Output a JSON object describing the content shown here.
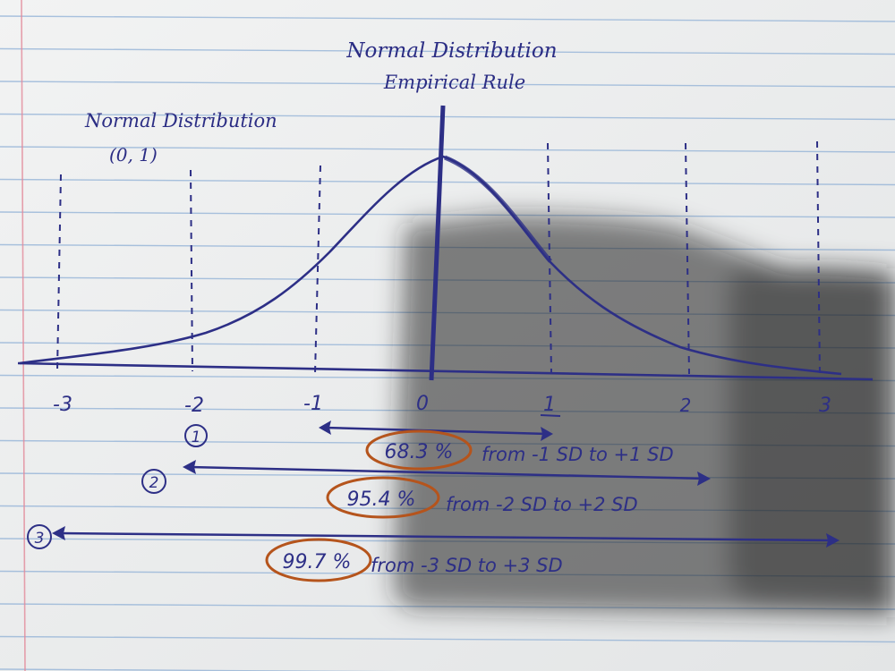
{
  "title": {
    "line1": "Normal Distribution",
    "line2": "Empirical Rule"
  },
  "subtitle": {
    "line1": "Normal Distribution",
    "line2": "(0, 1)"
  },
  "axis": {
    "ticks": [
      "-3",
      "-2",
      "-1",
      "0",
      "1",
      "2",
      "3"
    ]
  },
  "rules": [
    {
      "marker": "1",
      "percent": "68.3 %",
      "text": "from -1 SD to +1 SD"
    },
    {
      "marker": "2",
      "percent": "95.4 %",
      "text": "from -2 SD to +2 SD"
    },
    {
      "marker": "3",
      "percent": "99.7 %",
      "text": "from -3 SD to +3 SD"
    }
  ],
  "colors": {
    "paper": "#eceeef",
    "ink": "#2d2f86",
    "rule_line": "#8fb0d6",
    "margin_line": "#e38a9a",
    "highlight_oval": "#b5541c",
    "shadow": "#2a2a2a"
  }
}
